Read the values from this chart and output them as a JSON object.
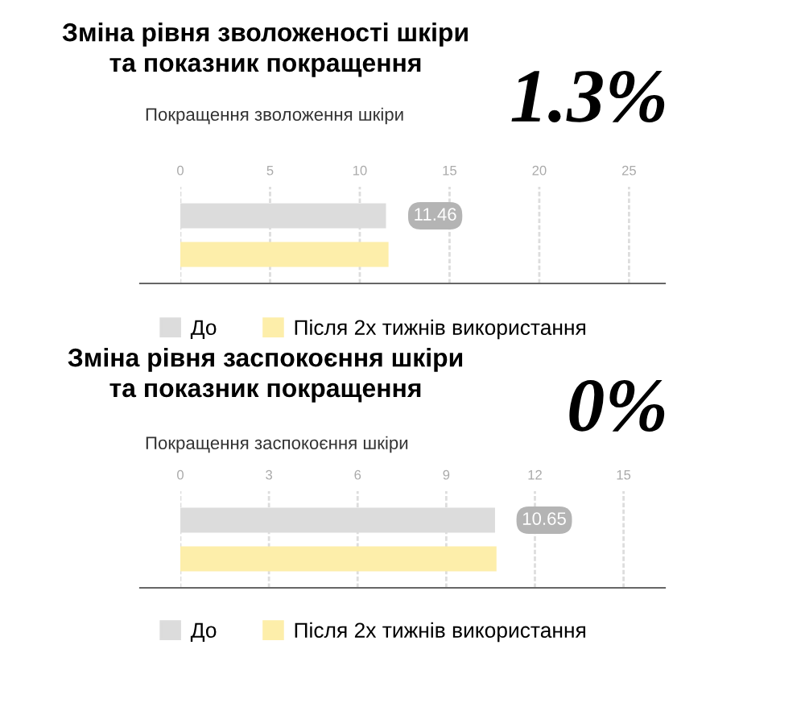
{
  "chart_data": [
    {
      "type": "bar",
      "orientation": "horizontal",
      "title": "Зміна рівня зволоженості шкіри\nта показник покращення",
      "subtitle": "Покращення зволоження шкіри",
      "annotations": [
        "1.3%"
      ],
      "categories": [
        null
      ],
      "series": [
        {
          "name": "До",
          "color": "#dcdcdc",
          "values": [
            11.46
          ],
          "value_labels": [
            "11.46"
          ]
        },
        {
          "name": "Після 2х тижнів використання",
          "color": "#fdeeaa",
          "values": [
            11.6
          ]
        }
      ],
      "xlim": [
        0,
        27
      ],
      "xticks": [
        0,
        5,
        10,
        15,
        20,
        25
      ],
      "grid": "x",
      "legend": "bottom"
    },
    {
      "type": "bar",
      "orientation": "horizontal",
      "title": "Зміна рівня заспокоєння шкіри\nта показник покращення",
      "subtitle": "Покращення заспокоєння шкіри",
      "annotations": [
        "0%"
      ],
      "categories": [
        null
      ],
      "series": [
        {
          "name": "До",
          "color": "#dcdcdc",
          "values": [
            10.65
          ],
          "value_labels": [
            "10.65"
          ]
        },
        {
          "name": "Після 2х тижнів використання",
          "color": "#fdeeaa",
          "values": [
            10.7
          ]
        }
      ],
      "xlim": [
        0,
        16.4
      ],
      "xticks": [
        0,
        3,
        6,
        9,
        12,
        15
      ],
      "grid": "x",
      "legend": "bottom"
    }
  ]
}
